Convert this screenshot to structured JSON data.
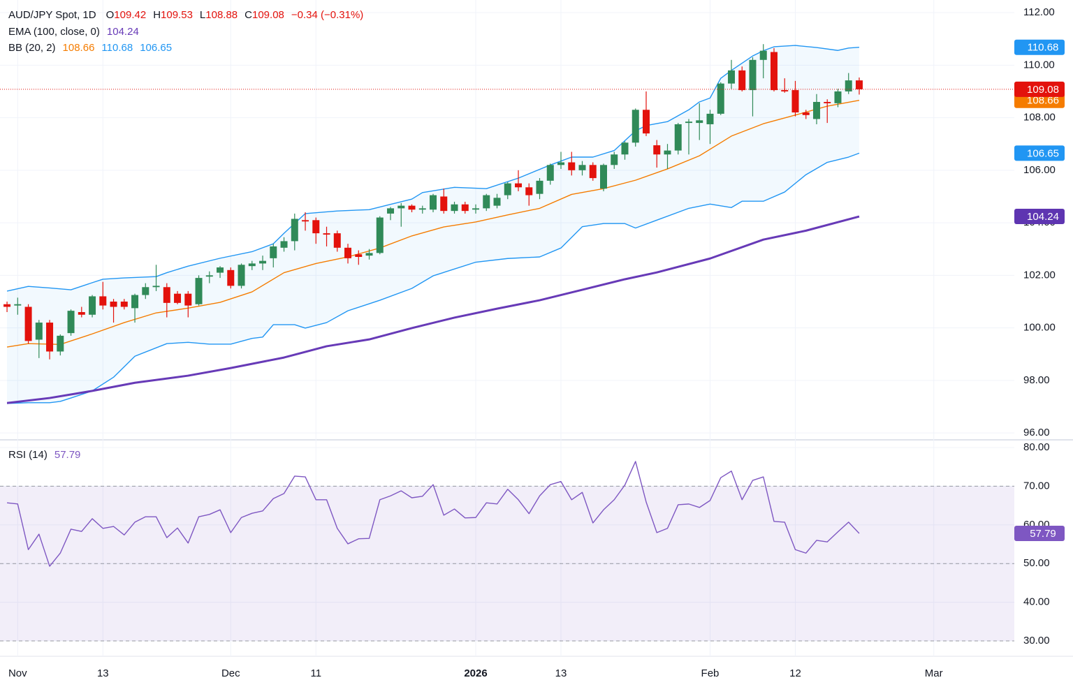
{
  "chart_data": {
    "type": "candlestick",
    "title": "AUD/JPY Spot, 1D",
    "ohlc_prefixes": [
      "O",
      "H",
      "L",
      "C"
    ],
    "change": "−0.34 (−0.31%)",
    "up_color": "#308a58",
    "down_color": "#e3120c",
    "candles": [
      [
        100.9,
        101.0,
        100.6,
        100.8
      ],
      [
        100.85,
        101.15,
        100.5,
        100.9
      ],
      [
        100.8,
        100.9,
        99.4,
        99.5
      ],
      [
        99.55,
        100.3,
        98.85,
        100.2
      ],
      [
        100.2,
        100.3,
        98.8,
        99.1
      ],
      [
        99.1,
        99.75,
        98.95,
        99.7
      ],
      [
        99.8,
        100.7,
        99.7,
        100.65
      ],
      [
        100.6,
        100.8,
        100.4,
        100.5
      ],
      [
        100.5,
        101.25,
        100.4,
        101.2
      ],
      [
        101.2,
        101.75,
        100.7,
        100.85
      ],
      [
        101.0,
        101.1,
        100.2,
        100.8
      ],
      [
        101.0,
        101.1,
        100.7,
        100.8
      ],
      [
        100.75,
        101.3,
        100.2,
        101.25
      ],
      [
        101.25,
        101.7,
        101.1,
        101.55
      ],
      [
        101.55,
        102.4,
        101.4,
        101.6
      ],
      [
        101.55,
        101.7,
        100.4,
        100.95
      ],
      [
        101.3,
        101.4,
        100.9,
        100.95
      ],
      [
        101.3,
        101.4,
        100.4,
        100.85
      ],
      [
        100.9,
        102.0,
        100.85,
        101.9
      ],
      [
        101.95,
        102.15,
        101.7,
        102.0
      ],
      [
        102.1,
        102.35,
        101.9,
        102.3
      ],
      [
        102.2,
        102.3,
        101.5,
        101.6
      ],
      [
        101.6,
        102.45,
        101.5,
        102.4
      ],
      [
        102.35,
        102.55,
        102.2,
        102.45
      ],
      [
        102.45,
        102.75,
        102.2,
        102.55
      ],
      [
        102.65,
        103.2,
        102.3,
        103.1
      ],
      [
        103.05,
        103.45,
        102.9,
        103.3
      ],
      [
        103.3,
        104.35,
        102.95,
        104.15
      ],
      [
        104.1,
        104.4,
        103.7,
        104.05
      ],
      [
        104.1,
        104.2,
        103.2,
        103.6
      ],
      [
        103.6,
        103.85,
        103.1,
        103.55
      ],
      [
        103.6,
        103.7,
        102.9,
        103.05
      ],
      [
        103.05,
        103.2,
        102.45,
        102.65
      ],
      [
        102.8,
        102.95,
        102.4,
        102.7
      ],
      [
        102.75,
        103.0,
        102.6,
        102.85
      ],
      [
        102.85,
        104.25,
        102.8,
        104.2
      ],
      [
        104.35,
        104.6,
        104.1,
        104.55
      ],
      [
        104.55,
        104.75,
        103.85,
        104.65
      ],
      [
        104.65,
        104.7,
        104.4,
        104.5
      ],
      [
        104.5,
        104.65,
        104.35,
        104.55
      ],
      [
        104.5,
        105.1,
        104.4,
        105.05
      ],
      [
        105.0,
        105.3,
        104.35,
        104.45
      ],
      [
        104.45,
        104.8,
        104.35,
        104.7
      ],
      [
        104.7,
        104.8,
        104.35,
        104.45
      ],
      [
        104.5,
        104.7,
        104.35,
        104.55
      ],
      [
        104.55,
        105.1,
        104.45,
        105.05
      ],
      [
        104.65,
        105.1,
        104.55,
        104.95
      ],
      [
        105.05,
        105.55,
        104.9,
        105.5
      ],
      [
        105.5,
        106.0,
        105.2,
        105.35
      ],
      [
        105.35,
        105.5,
        104.65,
        105.05
      ],
      [
        105.1,
        105.7,
        104.9,
        105.6
      ],
      [
        105.6,
        106.25,
        105.45,
        106.2
      ],
      [
        106.2,
        106.7,
        106.05,
        106.3
      ],
      [
        106.3,
        106.7,
        105.8,
        106.0
      ],
      [
        106.0,
        106.35,
        105.8,
        106.2
      ],
      [
        106.2,
        106.3,
        105.6,
        105.7
      ],
      [
        105.3,
        106.25,
        105.2,
        106.2
      ],
      [
        106.2,
        106.7,
        106.05,
        106.6
      ],
      [
        106.6,
        107.1,
        106.4,
        107.05
      ],
      [
        107.05,
        108.35,
        106.9,
        108.3
      ],
      [
        108.3,
        109.0,
        107.3,
        107.4
      ],
      [
        106.95,
        107.15,
        106.1,
        106.6
      ],
      [
        106.6,
        107.0,
        106.05,
        106.75
      ],
      [
        106.75,
        107.8,
        106.6,
        107.75
      ],
      [
        107.8,
        107.95,
        106.6,
        107.85
      ],
      [
        107.8,
        108.55,
        107.15,
        107.9
      ],
      [
        107.75,
        108.3,
        107.0,
        108.15
      ],
      [
        108.15,
        109.35,
        108.1,
        109.3
      ],
      [
        109.3,
        110.2,
        109.1,
        109.8
      ],
      [
        109.8,
        109.95,
        109.0,
        109.05
      ],
      [
        109.05,
        110.3,
        108.05,
        110.2
      ],
      [
        110.2,
        110.8,
        109.5,
        110.55
      ],
      [
        110.5,
        110.65,
        109.0,
        109.05
      ],
      [
        109.05,
        109.5,
        108.95,
        109.0
      ],
      [
        109.05,
        109.4,
        108.05,
        108.2
      ],
      [
        108.2,
        108.3,
        107.95,
        108.1
      ],
      [
        107.95,
        108.9,
        107.75,
        108.6
      ],
      [
        108.6,
        108.7,
        107.8,
        108.55
      ],
      [
        108.55,
        109.1,
        108.4,
        109.0
      ],
      [
        109.0,
        109.7,
        108.9,
        109.42
      ],
      [
        109.42,
        109.53,
        108.88,
        109.08
      ]
    ],
    "xlim": [
      -0.66,
      94.56
    ],
    "xticks": [
      {
        "value": 1,
        "label": "Nov"
      },
      {
        "value": 9,
        "label": "13"
      },
      {
        "value": 21,
        "label": "Dec"
      },
      {
        "value": 29,
        "label": "11"
      },
      {
        "value": 44,
        "label": "2026"
      },
      {
        "value": 52,
        "label": "13"
      },
      {
        "value": 66,
        "label": "Feb"
      },
      {
        "value": 74,
        "label": "12"
      },
      {
        "value": 87,
        "label": "Mar"
      }
    ],
    "ylim": [
      95.79,
      112.48
    ],
    "yticks": [
      {
        "value": 96,
        "label": "96.00"
      },
      {
        "value": 98,
        "label": "98.00"
      },
      {
        "value": 100,
        "label": "100.00"
      },
      {
        "value": 102,
        "label": "102.00"
      },
      {
        "value": 104,
        "label": "104.00"
      },
      {
        "value": 106,
        "label": "106.00"
      },
      {
        "value": 108,
        "label": "108.00"
      },
      {
        "value": 110,
        "label": "110.00"
      },
      {
        "value": 112,
        "label": "112.00"
      }
    ],
    "grid": true,
    "ema": {
      "name": "EMA (100, close, 0)",
      "color": "#673ab7",
      "x": [
        0,
        4,
        8,
        12,
        17,
        21,
        26,
        30,
        34,
        38,
        42,
        46,
        50,
        54,
        58,
        61,
        66,
        71,
        75,
        80
      ],
      "values": [
        97.14,
        97.33,
        97.6,
        97.91,
        98.18,
        98.47,
        98.87,
        99.3,
        99.56,
        99.99,
        100.39,
        100.73,
        101.05,
        101.45,
        101.85,
        102.11,
        102.64,
        103.36,
        103.7,
        104.24
      ]
    },
    "bb": {
      "name": "BB (20, 2)",
      "band_color": "#2196f3",
      "middle_color": "#f57c00",
      "upper": {
        "x": [
          0,
          2,
          4,
          6,
          8,
          9,
          11,
          14,
          15,
          17,
          20,
          23,
          25,
          26,
          28,
          31,
          34,
          36,
          38,
          39,
          42,
          45,
          48,
          51,
          53,
          55,
          57,
          59,
          60,
          62,
          64,
          65,
          66,
          67,
          68,
          70,
          71,
          72,
          74,
          76,
          78,
          79,
          80
        ],
        "values": [
          101.4,
          101.58,
          101.52,
          101.45,
          101.72,
          101.85,
          101.9,
          101.95,
          102.1,
          102.35,
          102.65,
          102.9,
          103.2,
          103.6,
          104.35,
          104.45,
          104.5,
          104.7,
          104.9,
          105.15,
          105.35,
          105.3,
          105.7,
          106.2,
          106.5,
          106.5,
          106.75,
          107.5,
          107.7,
          107.85,
          108.3,
          108.6,
          108.75,
          109.5,
          109.8,
          110.35,
          110.55,
          110.7,
          110.75,
          110.67,
          110.56,
          110.65,
          110.68
        ]
      },
      "middle": {
        "x": [
          0,
          2,
          5,
          8,
          11,
          14,
          17,
          20,
          23,
          26,
          29,
          32,
          35,
          38,
          41,
          44,
          47,
          50,
          53,
          56,
          59,
          62,
          65,
          68,
          71,
          74,
          77,
          80
        ],
        "values": [
          99.27,
          99.4,
          99.37,
          99.77,
          100.2,
          100.57,
          100.75,
          100.97,
          101.37,
          102.1,
          102.45,
          102.7,
          103.04,
          103.5,
          103.84,
          104.03,
          104.3,
          104.55,
          105.08,
          105.3,
          105.62,
          106.05,
          106.55,
          107.3,
          107.77,
          108.1,
          108.44,
          108.66
        ]
      },
      "lower": {
        "x": [
          0,
          2,
          4,
          5,
          6,
          8,
          10,
          12,
          15,
          17,
          19,
          21,
          23,
          24,
          25,
          27,
          28,
          30,
          32,
          35,
          38,
          40,
          44,
          47,
          50,
          52,
          54,
          56,
          58,
          59,
          61,
          64,
          66,
          68,
          69,
          71,
          73,
          75,
          77,
          79,
          80
        ],
        "values": [
          97.12,
          97.15,
          97.15,
          97.2,
          97.33,
          97.6,
          98.12,
          98.92,
          99.4,
          99.45,
          99.38,
          99.38,
          99.6,
          99.65,
          100.12,
          100.12,
          99.99,
          100.2,
          100.65,
          101.05,
          101.5,
          101.98,
          102.5,
          102.64,
          102.7,
          103.04,
          103.85,
          103.97,
          103.97,
          103.8,
          104.1,
          104.55,
          104.71,
          104.58,
          104.82,
          104.82,
          105.17,
          105.83,
          106.3,
          106.5,
          106.65
        ]
      }
    },
    "rsi": {
      "name": "RSI (14)",
      "color": "#7e57c2",
      "ylim": [
        26.03,
        81.8
      ],
      "yticks": [
        {
          "value": 30,
          "label": "30.00"
        },
        {
          "value": 40,
          "label": "40.00"
        },
        {
          "value": 50,
          "label": "50.00"
        },
        {
          "value": 60,
          "label": "60.00"
        },
        {
          "value": 70,
          "label": "70.00"
        },
        {
          "value": 80,
          "label": "80.00"
        }
      ],
      "band": [
        30,
        70
      ],
      "levels": [
        70,
        50,
        30
      ],
      "values": [
        65.7,
        65.4,
        53.6,
        57.6,
        49.3,
        52.7,
        58.9,
        58.3,
        61.6,
        59.1,
        59.6,
        57.4,
        60.7,
        62.1,
        62.1,
        56.7,
        59.2,
        55.3,
        62.1,
        62.7,
        63.9,
        58.0,
        61.9,
        63.0,
        63.6,
        66.8,
        68.1,
        72.6,
        72.4,
        66.5,
        66.5,
        59.1,
        55.1,
        56.4,
        56.5,
        66.5,
        67.5,
        68.8,
        67.0,
        67.4,
        70.4,
        62.5,
        64.1,
        61.8,
        61.9,
        65.7,
        65.4,
        69.2,
        66.5,
        62.9,
        67.5,
        70.4,
        71.2,
        66.5,
        68.4,
        60.5,
        63.9,
        66.5,
        70.3,
        76.4,
        65.9,
        58.0,
        59.1,
        65.2,
        65.4,
        64.5,
        66.3,
        72.2,
        73.9,
        66.5,
        71.5,
        72.4,
        60.9,
        60.7,
        53.6,
        52.7,
        56.0,
        55.6,
        58.2,
        60.7,
        57.79
      ]
    }
  }
}
